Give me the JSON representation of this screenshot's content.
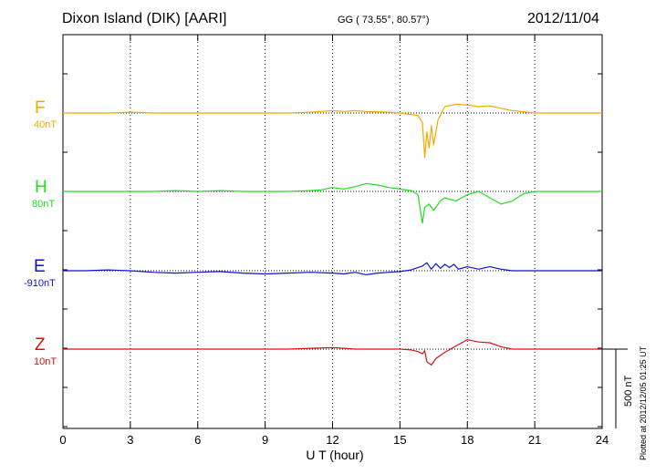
{
  "header": {
    "station": "Dixon Island (DIK)  [AARI]",
    "coords": "GG ( 73.55°,  80.57°)",
    "date": "2012/11/04"
  },
  "footer": {
    "plotted": "Plotted at 2012/12/05 01:25 UT"
  },
  "chart_data": {
    "type": "line",
    "title": "Dixon Island (DIK)  [AARI]",
    "xlabel": "U T (hour)",
    "ylabel": "",
    "xlim": [
      0,
      24
    ],
    "xticks": [
      0,
      3,
      6,
      9,
      12,
      15,
      18,
      21,
      24
    ],
    "grid": "vertical dotted every 3 hours",
    "scale_bar": "500 nT",
    "series": [
      {
        "name": "F",
        "offset_label": "40nT",
        "color": "#f5a800",
        "x": [
          0,
          1,
          2,
          3,
          4,
          5,
          6,
          7,
          8,
          9,
          10,
          11,
          11.5,
          12,
          12.5,
          13,
          13.5,
          14,
          14.5,
          15,
          15.5,
          15.8,
          16,
          16.1,
          16.2,
          16.3,
          16.4,
          16.5,
          16.7,
          17,
          17.5,
          18,
          18.5,
          19,
          19.5,
          20,
          21,
          22,
          23,
          24
        ],
        "y": [
          0,
          0,
          0,
          5,
          0,
          0,
          0,
          0,
          0,
          0,
          0,
          5,
          10,
          15,
          10,
          15,
          10,
          8,
          5,
          0,
          -10,
          -15,
          -60,
          -280,
          -120,
          -220,
          -80,
          -200,
          -40,
          40,
          55,
          50,
          40,
          45,
          30,
          15,
          0,
          0,
          0,
          0
        ]
      },
      {
        "name": "H",
        "offset_label": "80nT",
        "color": "#22dd22",
        "x": [
          0,
          1,
          2,
          3,
          4,
          5,
          6,
          7,
          8,
          9,
          10,
          11,
          11.5,
          12,
          12.5,
          13,
          13.5,
          14,
          14.5,
          15,
          15.5,
          15.8,
          16,
          16.1,
          16.3,
          16.5,
          16.8,
          17,
          17.5,
          18,
          18.5,
          19,
          19.5,
          20,
          20.5,
          21,
          22,
          23,
          24
        ],
        "y": [
          0,
          0,
          0,
          0,
          0,
          5,
          0,
          5,
          0,
          0,
          0,
          5,
          10,
          25,
          15,
          30,
          50,
          40,
          25,
          15,
          5,
          -20,
          -200,
          -100,
          -80,
          -120,
          -60,
          -40,
          -60,
          -20,
          0,
          -40,
          -80,
          -60,
          -15,
          0,
          0,
          0,
          0
        ]
      },
      {
        "name": "E",
        "offset_label": "-910nT",
        "color": "#1111cc",
        "x": [
          0,
          1,
          2,
          3,
          4,
          5,
          6,
          7,
          8,
          9,
          10,
          11,
          12,
          12.5,
          13,
          13.5,
          14,
          14.5,
          15,
          15.5,
          16,
          16.2,
          16.4,
          16.6,
          16.8,
          17,
          17.2,
          17.4,
          17.6,
          18,
          18.5,
          19,
          19.5,
          20,
          21,
          22,
          23,
          24
        ],
        "y": [
          0,
          0,
          5,
          0,
          -10,
          -15,
          -10,
          -5,
          -15,
          -20,
          -15,
          -10,
          -15,
          -20,
          -10,
          -25,
          -15,
          -10,
          -5,
          5,
          30,
          50,
          10,
          45,
          15,
          40,
          20,
          40,
          10,
          25,
          10,
          25,
          10,
          0,
          0,
          0,
          0,
          0
        ]
      },
      {
        "name": "Z",
        "offset_label": "10nT",
        "color": "#dd1111",
        "x": [
          0,
          1,
          2,
          3,
          4,
          5,
          6,
          7,
          8,
          9,
          10,
          11,
          12,
          12.5,
          13,
          14,
          15,
          15.5,
          15.8,
          16,
          16.1,
          16.2,
          16.4,
          16.6,
          17,
          17.5,
          18,
          18.5,
          19,
          19.5,
          20,
          21,
          22,
          23,
          24
        ],
        "y": [
          0,
          0,
          0,
          0,
          0,
          0,
          0,
          0,
          0,
          0,
          0,
          5,
          10,
          5,
          0,
          0,
          0,
          -5,
          -15,
          -30,
          -10,
          -80,
          -100,
          -60,
          -20,
          20,
          60,
          45,
          40,
          15,
          0,
          0,
          0,
          0,
          0
        ]
      }
    ]
  }
}
